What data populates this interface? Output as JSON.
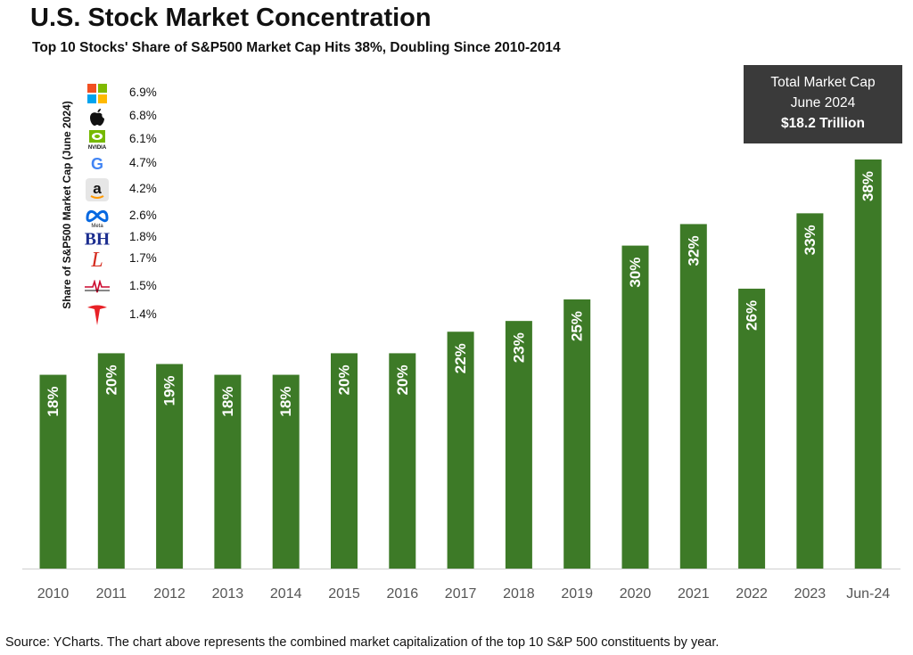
{
  "title": "U.S. Stock Market Concentration",
  "subtitle": "Top 10 Stocks' Share of S&P500 Market Cap Hits 38%, Doubling Since 2010-2014",
  "infobox": {
    "line1": "Total Market Cap",
    "line2": "June 2024",
    "line3": "$18.2 Trillion"
  },
  "ylabel": "Share of S&P500 Market Cap (June 2024)",
  "legend": [
    {
      "icon": "microsoft-logo",
      "pct": "6.9%"
    },
    {
      "icon": "apple-logo",
      "pct": "6.8%"
    },
    {
      "icon": "nvidia-logo",
      "pct": "6.1%"
    },
    {
      "icon": "google-logo",
      "pct": "4.7%"
    },
    {
      "icon": "amazon-logo",
      "pct": "4.2%"
    },
    {
      "icon": "meta-logo",
      "pct": "2.6%"
    },
    {
      "icon": "berkshire-hathaway-logo",
      "pct": "1.8%"
    },
    {
      "icon": "eli-lilly-logo",
      "pct": "1.7%"
    },
    {
      "icon": "broadcom-logo",
      "pct": "1.5%"
    },
    {
      "icon": "tesla-logo",
      "pct": "1.4%"
    }
  ],
  "source": "Source: YCharts. The chart above represents the combined market capitalization of the top 10 S&P 500 constituents by year.",
  "chart_data": {
    "type": "bar",
    "categories": [
      "2010",
      "2011",
      "2012",
      "2013",
      "2014",
      "2015",
      "2016",
      "2017",
      "2018",
      "2019",
      "2020",
      "2021",
      "2022",
      "2023",
      "Jun-24"
    ],
    "values": [
      18,
      20,
      19,
      18,
      18,
      20,
      20,
      22,
      23,
      25,
      30,
      32,
      26,
      33,
      38
    ],
    "data_labels": [
      "18%",
      "20%",
      "19%",
      "18%",
      "18%",
      "20%",
      "20%",
      "22%",
      "23%",
      "25%",
      "30%",
      "32%",
      "26%",
      "33%",
      "38%"
    ],
    "ylim": [
      0,
      38
    ],
    "bar_color": "#3d7a27",
    "grid": false
  }
}
